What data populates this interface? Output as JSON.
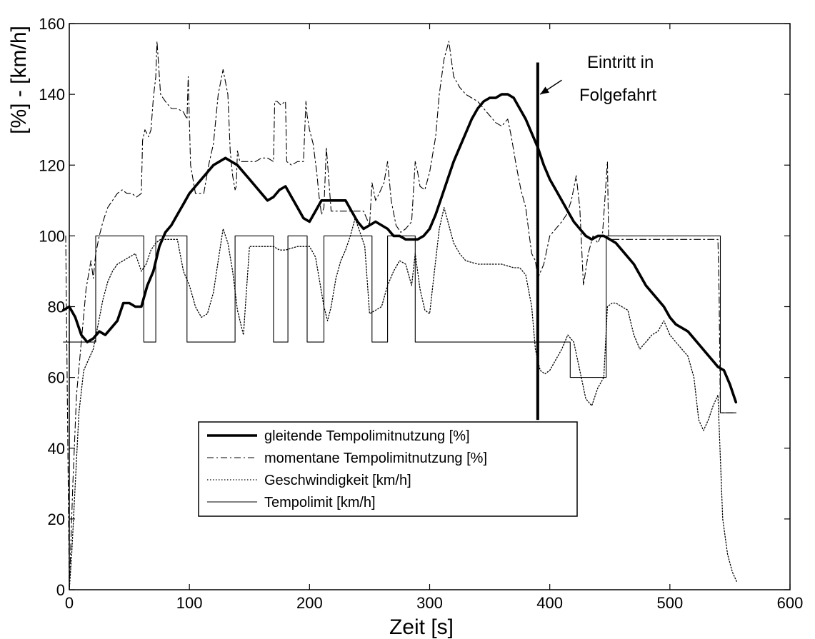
{
  "chart_data": {
    "type": "line",
    "title": "",
    "xlabel": "Zeit [s]",
    "ylabel": "[%] - [km/h]",
    "xlim": [
      0,
      600
    ],
    "ylim": [
      0,
      160
    ],
    "xticks": [
      0,
      100,
      200,
      300,
      400,
      500,
      600
    ],
    "yticks": [
      0,
      20,
      40,
      60,
      80,
      100,
      120,
      140,
      160
    ],
    "grid": false,
    "legend_position": "lower-center",
    "series": [
      {
        "name": "gleitende Tempolimitnutzung [%]",
        "style": "thick-solid",
        "color": "#000000",
        "x": [
          -5,
          0,
          5,
          10,
          15,
          20,
          25,
          30,
          35,
          40,
          45,
          50,
          55,
          60,
          65,
          70,
          75,
          80,
          85,
          90,
          95,
          100,
          105,
          110,
          115,
          120,
          125,
          130,
          135,
          140,
          145,
          150,
          155,
          160,
          165,
          170,
          175,
          180,
          185,
          190,
          195,
          200,
          205,
          210,
          215,
          220,
          225,
          230,
          235,
          240,
          245,
          250,
          255,
          260,
          265,
          270,
          275,
          280,
          285,
          290,
          295,
          300,
          305,
          310,
          315,
          320,
          325,
          330,
          335,
          340,
          345,
          350,
          355,
          360,
          365,
          370,
          375,
          380,
          385,
          390,
          395,
          400,
          405,
          410,
          415,
          420,
          425,
          430,
          435,
          440,
          445,
          450,
          455,
          460,
          465,
          470,
          475,
          480,
          485,
          490,
          495,
          500,
          505,
          510,
          515,
          520,
          525,
          530,
          535,
          540,
          545,
          550,
          555
        ],
        "y": [
          79,
          80,
          77,
          72,
          70,
          71,
          73,
          72,
          74,
          76,
          81,
          81,
          80,
          80,
          86,
          90,
          97,
          101,
          103,
          106,
          109,
          112,
          114,
          116,
          118,
          120,
          121,
          122,
          121,
          120,
          118,
          116,
          114,
          112,
          110,
          111,
          113,
          114,
          111,
          108,
          105,
          104,
          107,
          110,
          110,
          110,
          110,
          110,
          107,
          104,
          102,
          103,
          104,
          103,
          102,
          100,
          100,
          99,
          99,
          99,
          100,
          102,
          106,
          111,
          116,
          121,
          125,
          129,
          133,
          136,
          138,
          139,
          139,
          140,
          140,
          139,
          136,
          133,
          129,
          125,
          120,
          116,
          113,
          110,
          107,
          104,
          102,
          100,
          99,
          100,
          100,
          99,
          98,
          96,
          94,
          92,
          89,
          86,
          84,
          82,
          80,
          77,
          75,
          74,
          73,
          71,
          69,
          67,
          65,
          63,
          62,
          58,
          53
        ]
      },
      {
        "name": "momentane Tempolimitnutzung [%]",
        "style": "dash-dot",
        "color": "#000000",
        "x": [
          -3,
          0,
          1,
          3,
          6,
          10,
          14,
          18,
          20,
          22,
          25,
          28,
          32,
          36,
          40,
          44,
          48,
          52,
          56,
          60,
          61,
          63,
          66,
          68,
          70,
          72,
          73,
          76,
          80,
          85,
          90,
          95,
          98,
          99,
          101,
          105,
          108,
          112,
          116,
          120,
          124,
          128,
          132,
          134,
          136,
          138,
          139,
          140,
          142,
          145,
          150,
          155,
          160,
          165,
          170,
          171,
          173,
          176,
          180,
          181,
          185,
          190,
          195,
          197,
          198,
          200,
          203,
          206,
          208,
          210,
          212,
          214,
          218,
          222,
          226,
          230,
          235,
          240,
          245,
          250,
          252,
          255,
          258,
          262,
          265,
          268,
          272,
          276,
          280,
          285,
          288,
          290,
          292,
          296,
          300,
          305,
          308,
          312,
          316,
          320,
          325,
          330,
          335,
          340,
          345,
          350,
          355,
          360,
          365,
          368,
          372,
          376,
          380,
          383,
          385,
          388,
          390,
          395,
          400,
          405,
          410,
          414,
          418,
          422,
          425,
          428,
          432,
          436,
          440,
          444,
          448,
          449,
          452,
          455,
          460,
          480,
          500,
          520,
          535,
          540,
          541,
          542,
          545,
          550,
          555
        ],
        "y": [
          100,
          0,
          10,
          30,
          55,
          70,
          85,
          93,
          88,
          95,
          100,
          104,
          108,
          110,
          112,
          113,
          112,
          112,
          111,
          112,
          127,
          130,
          128,
          130,
          139,
          145,
          155,
          140,
          138,
          136,
          136,
          135,
          133,
          145,
          120,
          112,
          112,
          112,
          120,
          126,
          140,
          147,
          140,
          124,
          117,
          113,
          114,
          124,
          121,
          121,
          121,
          121,
          122,
          122,
          121,
          138,
          138,
          137,
          138,
          121,
          120,
          121,
          121,
          138,
          134,
          130,
          126,
          118,
          111,
          106,
          108,
          125,
          107,
          107,
          107,
          107,
          107,
          107,
          107,
          103,
          115,
          110,
          112,
          115,
          121,
          110,
          103,
          101,
          102,
          104,
          121,
          118,
          114,
          113,
          118,
          128,
          140,
          150,
          155,
          145,
          142,
          140,
          139,
          138,
          136,
          134,
          132,
          131,
          133,
          128,
          120,
          113,
          108,
          100,
          95,
          93,
          88,
          92,
          100,
          102,
          104,
          106,
          110,
          117,
          108,
          86,
          95,
          100,
          98,
          101,
          121,
          99,
          99,
          99,
          99,
          99,
          99,
          99,
          99,
          99,
          83,
          50,
          50,
          50,
          50
        ]
      },
      {
        "name": "Geschwindigkeit [km/h]",
        "style": "dotted",
        "color": "#000000",
        "x": [
          0,
          2,
          5,
          8,
          12,
          16,
          20,
          24,
          28,
          32,
          36,
          40,
          45,
          50,
          55,
          60,
          64,
          68,
          72,
          76,
          80,
          85,
          90,
          95,
          100,
          105,
          110,
          115,
          120,
          124,
          128,
          132,
          136,
          140,
          145,
          150,
          160,
          170,
          175,
          180,
          190,
          200,
          205,
          208,
          212,
          215,
          218,
          222,
          226,
          230,
          234,
          238,
          242,
          246,
          250,
          255,
          260,
          265,
          270,
          275,
          280,
          285,
          288,
          292,
          296,
          300,
          304,
          308,
          312,
          316,
          320,
          325,
          330,
          340,
          350,
          360,
          370,
          375,
          380,
          385,
          388,
          392,
          396,
          400,
          405,
          410,
          415,
          420,
          425,
          430,
          435,
          440,
          445,
          448,
          452,
          455,
          460,
          465,
          470,
          475,
          480,
          485,
          490,
          495,
          500,
          505,
          510,
          515,
          520,
          524,
          528,
          532,
          536,
          540,
          544,
          548,
          552,
          556
        ],
        "y": [
          0,
          10,
          30,
          50,
          62,
          65,
          68,
          75,
          82,
          87,
          90,
          92,
          93,
          94,
          95,
          90,
          92,
          96,
          98,
          99,
          99,
          99,
          99,
          90,
          86,
          80,
          77,
          78,
          84,
          93,
          102,
          98,
          90,
          79,
          72,
          97,
          97,
          97,
          96,
          96,
          97,
          97,
          94,
          88,
          80,
          76,
          80,
          88,
          93,
          96,
          100,
          105,
          101,
          97,
          78,
          79,
          80,
          86,
          90,
          93,
          92,
          86,
          95,
          85,
          79,
          78,
          90,
          102,
          108,
          103,
          98,
          95,
          93,
          92,
          92,
          92,
          91,
          91,
          89,
          80,
          68,
          62,
          61,
          62,
          65,
          68,
          72,
          70,
          62,
          54,
          52,
          57,
          60,
          80,
          81,
          81,
          80,
          79,
          72,
          68,
          70,
          72,
          73,
          76,
          72,
          70,
          68,
          66,
          60,
          48,
          45,
          48,
          52,
          55,
          20,
          10,
          5,
          2
        ]
      },
      {
        "name": "Tempolimit [km/h]",
        "style": "thin-solid",
        "color": "#000000",
        "x": [
          -5,
          22,
          22,
          62,
          62,
          72,
          72,
          98,
          98,
          138,
          138,
          170,
          170,
          182,
          182,
          198,
          198,
          212,
          212,
          252,
          252,
          265,
          265,
          288,
          288,
          417,
          417,
          447,
          447,
          542,
          542,
          555
        ],
        "y": [
          70,
          70,
          100,
          100,
          70,
          70,
          100,
          100,
          70,
          70,
          100,
          100,
          70,
          70,
          100,
          100,
          70,
          70,
          100,
          100,
          70,
          70,
          100,
          100,
          70,
          70,
          60,
          60,
          100,
          100,
          50,
          50
        ]
      }
    ],
    "marker_line": {
      "x": 390,
      "y_from": 48,
      "y_to": 149
    },
    "annotation": {
      "line1": "Eintritt in",
      "line2": "Folgefahrt",
      "arrow_from": [
        410,
        144
      ],
      "arrow_to": [
        392,
        140
      ]
    }
  }
}
